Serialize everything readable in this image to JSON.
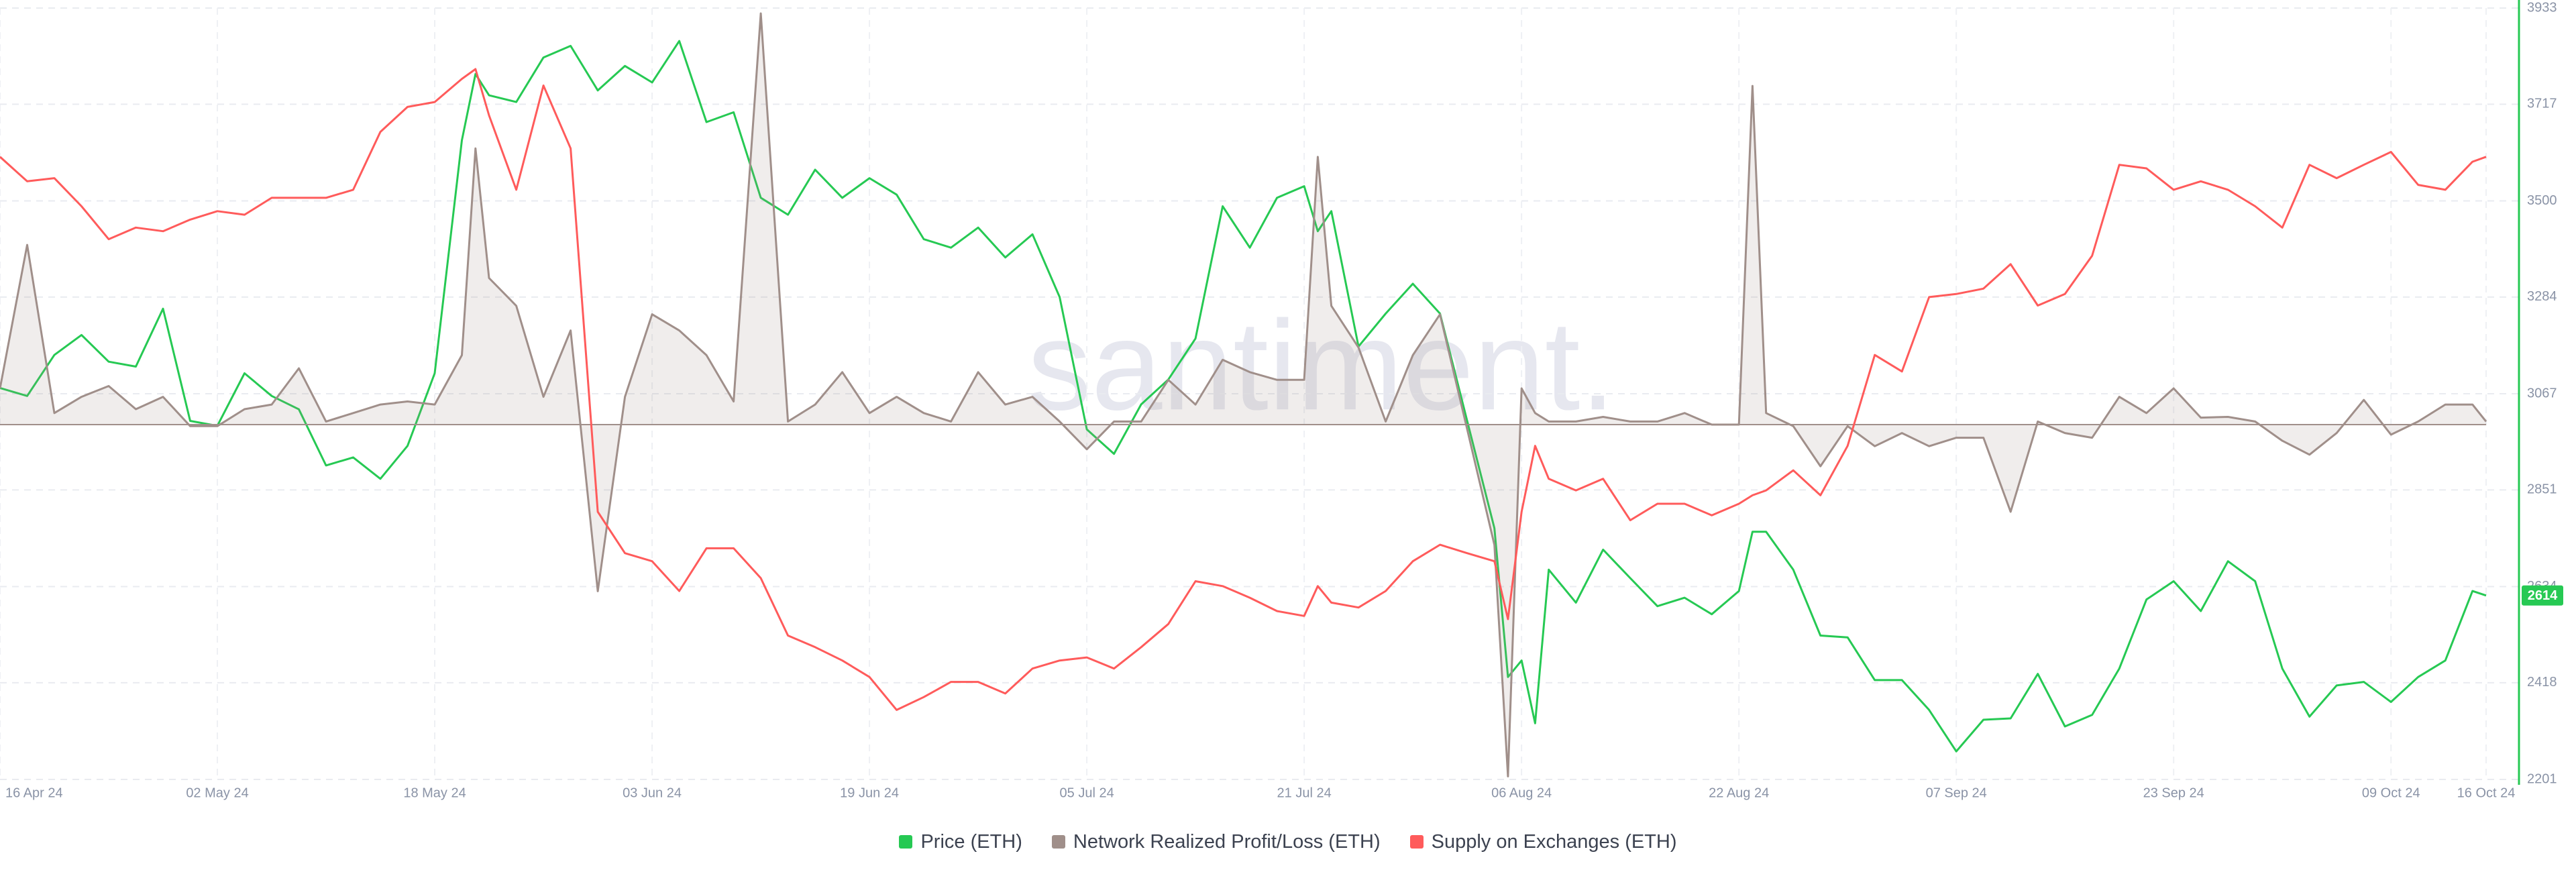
{
  "chart_data": {
    "type": "line",
    "watermark": "santiment.",
    "x": [
      "2024-04-16",
      "2024-04-18",
      "2024-04-20",
      "2024-04-22",
      "2024-04-24",
      "2024-04-26",
      "2024-04-28",
      "2024-04-30",
      "2024-05-02",
      "2024-05-04",
      "2024-05-06",
      "2024-05-08",
      "2024-05-10",
      "2024-05-12",
      "2024-05-14",
      "2024-05-16",
      "2024-05-18",
      "2024-05-20",
      "2024-05-21",
      "2024-05-22",
      "2024-05-24",
      "2024-05-26",
      "2024-05-28",
      "2024-05-30",
      "2024-06-01",
      "2024-06-03",
      "2024-06-05",
      "2024-06-07",
      "2024-06-09",
      "2024-06-11",
      "2024-06-13",
      "2024-06-15",
      "2024-06-17",
      "2024-06-19",
      "2024-06-21",
      "2024-06-23",
      "2024-06-25",
      "2024-06-27",
      "2024-06-29",
      "2024-07-01",
      "2024-07-03",
      "2024-07-05",
      "2024-07-07",
      "2024-07-09",
      "2024-07-11",
      "2024-07-13",
      "2024-07-15",
      "2024-07-17",
      "2024-07-19",
      "2024-07-21",
      "2024-07-22",
      "2024-07-23",
      "2024-07-25",
      "2024-07-27",
      "2024-07-29",
      "2024-07-31",
      "2024-08-02",
      "2024-08-04",
      "2024-08-05",
      "2024-08-06",
      "2024-08-07",
      "2024-08-08",
      "2024-08-10",
      "2024-08-12",
      "2024-08-14",
      "2024-08-16",
      "2024-08-18",
      "2024-08-20",
      "2024-08-22",
      "2024-08-23",
      "2024-08-24",
      "2024-08-26",
      "2024-08-28",
      "2024-08-30",
      "2024-09-01",
      "2024-09-03",
      "2024-09-05",
      "2024-09-07",
      "2024-09-09",
      "2024-09-11",
      "2024-09-13",
      "2024-09-15",
      "2024-09-17",
      "2024-09-19",
      "2024-09-21",
      "2024-09-23",
      "2024-09-25",
      "2024-09-27",
      "2024-09-29",
      "2024-10-01",
      "2024-10-03",
      "2024-10-05",
      "2024-10-07",
      "2024-10-09",
      "2024-10-11",
      "2024-10-13",
      "2024-10-15",
      "2024-10-16"
    ],
    "xticks": [
      {
        "value": "2024-04-16",
        "label": "16 Apr 24"
      },
      {
        "value": "2024-05-02",
        "label": "02 May 24"
      },
      {
        "value": "2024-05-18",
        "label": "18 May 24"
      },
      {
        "value": "2024-06-03",
        "label": "03 Jun 24"
      },
      {
        "value": "2024-06-19",
        "label": "19 Jun 24"
      },
      {
        "value": "2024-07-05",
        "label": "05 Jul 24"
      },
      {
        "value": "2024-07-21",
        "label": "21 Jul 24"
      },
      {
        "value": "2024-08-06",
        "label": "06 Aug 24"
      },
      {
        "value": "2024-08-22",
        "label": "22 Aug 24"
      },
      {
        "value": "2024-09-07",
        "label": "07 Sep 24"
      },
      {
        "value": "2024-09-23",
        "label": "23 Sep 24"
      },
      {
        "value": "2024-10-09",
        "label": "09 Oct 24"
      },
      {
        "value": "2024-10-16",
        "label": "16 Oct 24"
      }
    ],
    "ylim": [
      2201,
      3933
    ],
    "yticks": [
      2201,
      2418,
      2634,
      2851,
      3067,
      3284,
      3500,
      3717,
      3933
    ],
    "y3lim": [
      -46,
      54
    ],
    "grid": true,
    "series": [
      {
        "name": "Price (ETH)",
        "color": "#26c953",
        "values": [
          3080,
          3062,
          3154,
          3199,
          3139,
          3128,
          3258,
          3006,
          2995,
          3113,
          3062,
          3032,
          2906,
          2924,
          2876,
          2950,
          3113,
          3636,
          3785,
          3737,
          3722,
          3822,
          3848,
          3748,
          3803,
          3766,
          3859,
          3677,
          3699,
          3507,
          3469,
          3570,
          3507,
          3551,
          3514,
          3414,
          3395,
          3440,
          3373,
          3425,
          3284,
          2987,
          2932,
          3043,
          3099,
          3191,
          3488,
          3395,
          3507,
          3533,
          3432,
          3477,
          3173,
          3247,
          3314,
          3247,
          3006,
          2765,
          2431,
          2468,
          2327,
          2672,
          2598,
          2717,
          2653,
          2590,
          2609,
          2572,
          2624,
          2757,
          2757,
          2672,
          2524,
          2520,
          2424,
          2424,
          2357,
          2264,
          2335,
          2338,
          2438,
          2320,
          2346,
          2450,
          2605,
          2646,
          2579,
          2691,
          2646,
          2450,
          2342,
          2412,
          2420,
          2375,
          2431,
          2468,
          2624,
          2614
        ]
      },
      {
        "name": "Network Realized Profit/Loss (ETH)",
        "color": "#a08f8a",
        "axis": "y3",
        "area": true,
        "values": [
          4.7,
          23.3,
          1.5,
          3.6,
          5,
          2,
          3.6,
          -0.2,
          -0.2,
          2,
          2.6,
          7.3,
          0.4,
          1.5,
          2.6,
          3,
          2.6,
          9,
          35.8,
          19,
          15.4,
          3.6,
          12.2,
          -21.6,
          3.6,
          14.3,
          12.2,
          9,
          3,
          53.3,
          0.4,
          2.6,
          6.8,
          1.5,
          3.6,
          1.5,
          0.4,
          6.8,
          2.6,
          3.6,
          0.4,
          -3.2,
          0.4,
          0.4,
          5.8,
          2.6,
          8.4,
          6.8,
          5.8,
          5.8,
          34.7,
          15.4,
          10,
          0.4,
          9,
          14.3,
          -0.6,
          -15.6,
          -45.6,
          4.7,
          1.5,
          0.4,
          0.4,
          1,
          0.4,
          0.4,
          1.5,
          0,
          0,
          43.9,
          1.5,
          -0.2,
          -5.4,
          -0.2,
          -2.8,
          -1.1,
          -2.8,
          -1.7,
          -1.7,
          -11.3,
          0.4,
          -1.1,
          -1.7,
          3.6,
          1.5,
          4.7,
          0.9,
          1,
          0.4,
          -2.1,
          -3.9,
          -1.1,
          3.2,
          -1.3,
          0.4,
          2.6,
          2.6,
          0.4
        ]
      },
      {
        "name": "Supply on Exchanges (ETH)",
        "color": "#ff5b5b",
        "values": [
          3599,
          3544,
          3551,
          3488,
          3414,
          3440,
          3432,
          3458,
          3477,
          3469,
          3507,
          3507,
          3507,
          3525,
          3655,
          3711,
          3722,
          3774,
          3796,
          3692,
          3525,
          3759,
          3618,
          2802,
          2709,
          2691,
          2624,
          2720,
          2720,
          2653,
          2524,
          2498,
          2468,
          2431,
          2357,
          2386,
          2420,
          2420,
          2394,
          2450,
          2468,
          2475,
          2450,
          2498,
          2550,
          2646,
          2635,
          2609,
          2579,
          2568,
          2635,
          2598,
          2587,
          2624,
          2691,
          2728,
          2709,
          2691,
          2561,
          2802,
          2950,
          2876,
          2850,
          2876,
          2783,
          2820,
          2820,
          2794,
          2820,
          2839,
          2850,
          2895,
          2839,
          2950,
          3154,
          3117,
          3284,
          3291,
          3303,
          3358,
          3265,
          3291,
          3377,
          3581,
          3573,
          3525,
          3544,
          3525,
          3488,
          3440,
          3581,
          3551,
          3581,
          3610,
          3536,
          3525,
          3588,
          3599
        ]
      }
    ]
  }
}
